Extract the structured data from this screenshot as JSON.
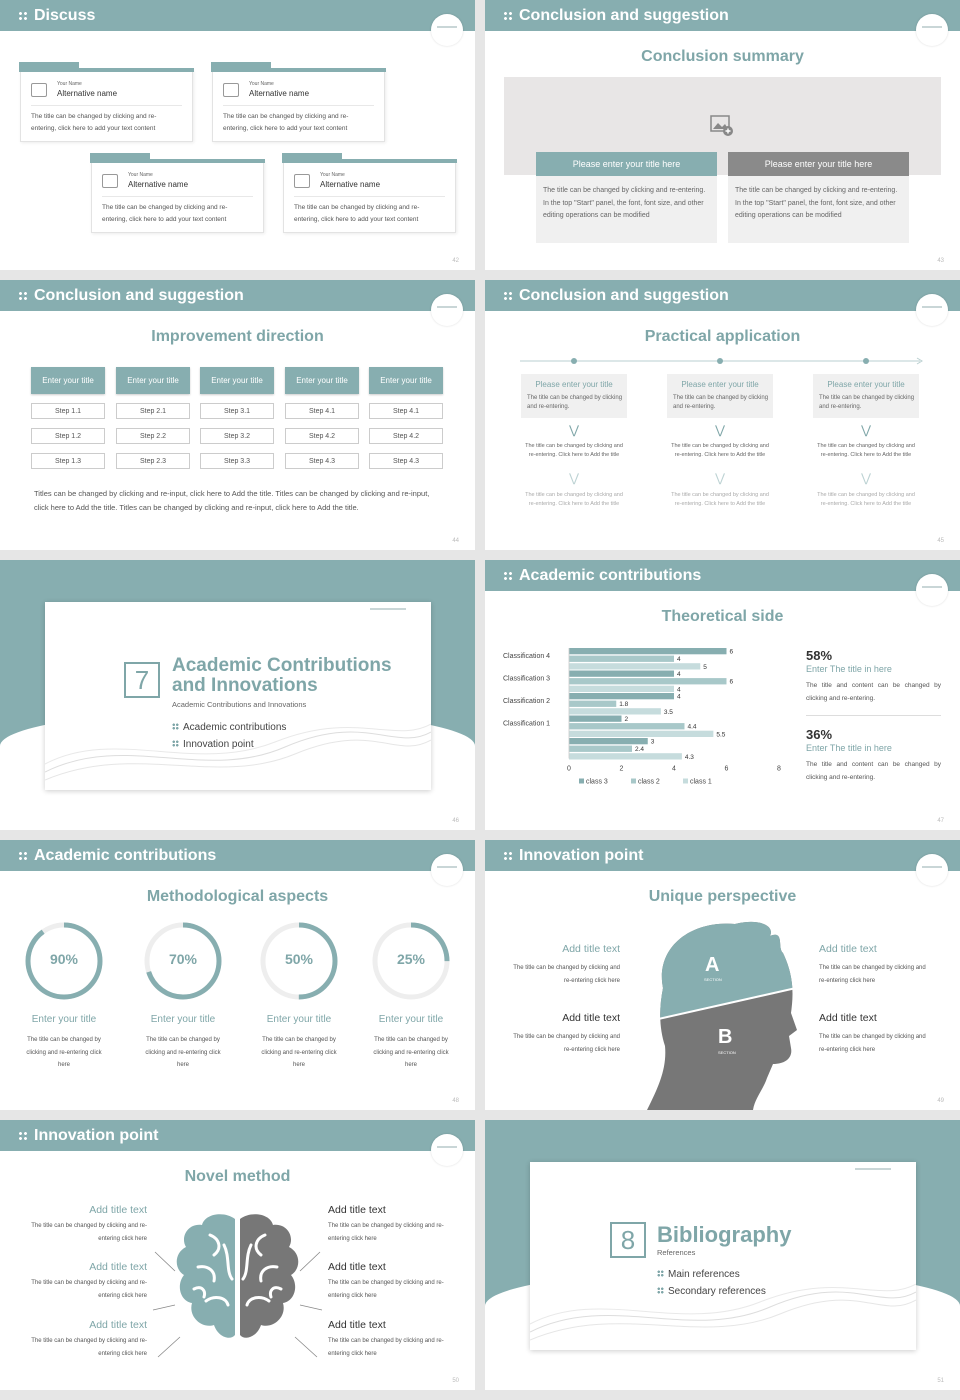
{
  "s42": {
    "header": "Discuss",
    "page": "42",
    "cards": [
      {
        "sub": "Your Name",
        "name": "Alternative name",
        "text": "The title can be changed by clicking and re-entering, click here to add your text content"
      },
      {
        "sub": "Your Name",
        "name": "Alternative name",
        "text": "The title can be changed by clicking and re-entering, click here to add your text content"
      },
      {
        "sub": "Your Name",
        "name": "Alternative name",
        "text": "The title can be changed by clicking and re-entering, click here to add your text content"
      },
      {
        "sub": "Your Name",
        "name": "Alternative name",
        "text": "The title can be changed by clicking and re-entering, click here to add your text content"
      }
    ]
  },
  "s43": {
    "header": "Conclusion and suggestion",
    "title": "Conclusion summary",
    "page": "43",
    "boxes": [
      {
        "title": "Please enter your title here",
        "text": "The title can be changed by clicking and re-entering. In the top \"Start\" panel, the font, font size, and other editing operations can be modified"
      },
      {
        "title": "Please enter your title here",
        "text": "The title can be changed by clicking and re-entering. In the top \"Start\" panel, the font, font size, and other editing operations can be modified"
      }
    ]
  },
  "s44": {
    "header": "Conclusion and suggestion",
    "title": "Improvement direction",
    "page": "44",
    "cols": [
      {
        "title": "Enter your title",
        "steps": [
          "Step 1.1",
          "Step 1.2",
          "Step 1.3"
        ]
      },
      {
        "title": "Enter your title",
        "steps": [
          "Step 2.1",
          "Step 2.2",
          "Step 2.3"
        ]
      },
      {
        "title": "Enter your title",
        "steps": [
          "Step 3.1",
          "Step 3.2",
          "Step 3.3"
        ]
      },
      {
        "title": "Enter your title",
        "steps": [
          "Step 4.1",
          "Step 4.2",
          "Step 4.3"
        ]
      },
      {
        "title": "Enter your title",
        "steps": [
          "Step 4.1",
          "Step 4.2",
          "Step 4.3"
        ]
      }
    ],
    "footer": "Titles can be changed by clicking and re-input, click here to Add the title. Titles can be changed by clicking and re-input, click here to Add the title. Titles can be changed by clicking and re-input, click here to Add the title."
  },
  "s45": {
    "header": "Conclusion and suggestion",
    "title": "Practical application",
    "page": "45",
    "items": [
      {
        "title": "Please enter your title",
        "text": "The title can be changed by clicking and re-entering.",
        "t1": "The title can be changed by clicking and re-entering. Click here to Add the title",
        "t2": "The title can be changed by clicking and re-entering. Click here to Add the title"
      },
      {
        "title": "Please enter your title",
        "text": "The title can be changed by clicking and re-entering.",
        "t1": "The title can be changed by clicking and re-entering. Click here to Add the title",
        "t2": "The title can be changed by clicking and re-entering. Click here to Add the title"
      },
      {
        "title": "Please enter your title",
        "text": "The title can be changed by clicking and re-entering.",
        "t1": "The title can be changed by clicking and re-entering. Click here to Add the title",
        "t2": "The title can be changed by clicking and re-entering. Click here to Add the title"
      }
    ]
  },
  "s46": {
    "num": "7",
    "title1": "Academic Contributions",
    "title2": "and Innovations",
    "sub": "Academic Contributions and Innovations",
    "items": [
      "Academic contributions",
      "Innovation point"
    ],
    "page": "46"
  },
  "s47": {
    "header": "Academic contributions",
    "title": "Theoretical side",
    "page": "47",
    "stats": [
      {
        "pct": "58%",
        "title": "Enter The title in here",
        "text": "The title and content can be changed by clicking and re-entering."
      },
      {
        "pct": "36%",
        "title": "Enter The title in here",
        "text": "The title and content can be changed by clicking and re-entering."
      }
    ]
  },
  "chart_data": {
    "type": "bar",
    "orientation": "horizontal",
    "categories": [
      "Classification 4",
      "Classification 3",
      "Classification 2",
      "Classification 1",
      ""
    ],
    "series": [
      {
        "name": "class 3",
        "color": "#87aeb0",
        "values": [
          6,
          4,
          4,
          2,
          3
        ]
      },
      {
        "name": "class 2",
        "color": "#a8c8c9",
        "values": [
          4,
          6,
          1.8,
          4.4,
          2.4
        ]
      },
      {
        "name": "class 1",
        "color": "#c6dcdd",
        "values": [
          5,
          4,
          3.5,
          5.5,
          4.3
        ]
      }
    ],
    "xticks": [
      "0",
      "2",
      "4",
      "6",
      "8"
    ],
    "xlim": [
      0,
      8
    ],
    "legend": "bottom"
  },
  "s48": {
    "header": "Academic contributions",
    "title": "Methodological aspects",
    "page": "48",
    "items": [
      {
        "pct": "90%",
        "value": 0.9,
        "title": "Enter your title",
        "text": "The title can be changed by clicking and re-entering click here"
      },
      {
        "pct": "70%",
        "value": 0.7,
        "title": "Enter your title",
        "text": "The title can be changed by clicking and re-entering click here"
      },
      {
        "pct": "50%",
        "value": 0.5,
        "title": "Enter your title",
        "text": "The title can be changed by clicking and re-entering click here"
      },
      {
        "pct": "25%",
        "value": 0.25,
        "title": "Enter your title",
        "text": "The title can be changed by clicking and re-entering click here"
      }
    ]
  },
  "s49": {
    "header": "Innovation point",
    "title": "Unique perspective",
    "page": "49",
    "a": "A",
    "b": "B",
    "section": "SECTION",
    "items": [
      {
        "title": "Add title text",
        "text": "The title can be changed by clicking and re-entering click here"
      },
      {
        "title": "Add title text",
        "text": "The title can be changed by clicking and re-entering click here"
      },
      {
        "title": "Add title text",
        "text": "The title can be changed by clicking and re-entering click here"
      },
      {
        "title": "Add title text",
        "text": "The title can be changed by clicking and re-entering click here"
      }
    ]
  },
  "s50": {
    "header": "Innovation point",
    "title": "Novel method",
    "page": "50",
    "items": [
      {
        "title": "Add title text",
        "text": "The title can be changed by clicking and re-entering click here"
      },
      {
        "title": "Add title text",
        "text": "The title can be changed by clicking and re-entering click here"
      },
      {
        "title": "Add title text",
        "text": "The title can be changed by clicking and re-entering click here"
      },
      {
        "title": "Add title text",
        "text": "The title can be changed by clicking and re-entering click here"
      },
      {
        "title": "Add title text",
        "text": "The title can be changed by clicking and re-entering click here"
      },
      {
        "title": "Add title text",
        "text": "The title can be changed by clicking and re-entering click here"
      }
    ]
  },
  "s51": {
    "num": "8",
    "title": "Bibliography",
    "sub": "References",
    "items": [
      "Main references",
      "Secondary references"
    ],
    "page": "51"
  },
  "colors": {
    "accent": "#87aeb0",
    "gray": "#8a8a8a",
    "head_gray": "#777777"
  }
}
